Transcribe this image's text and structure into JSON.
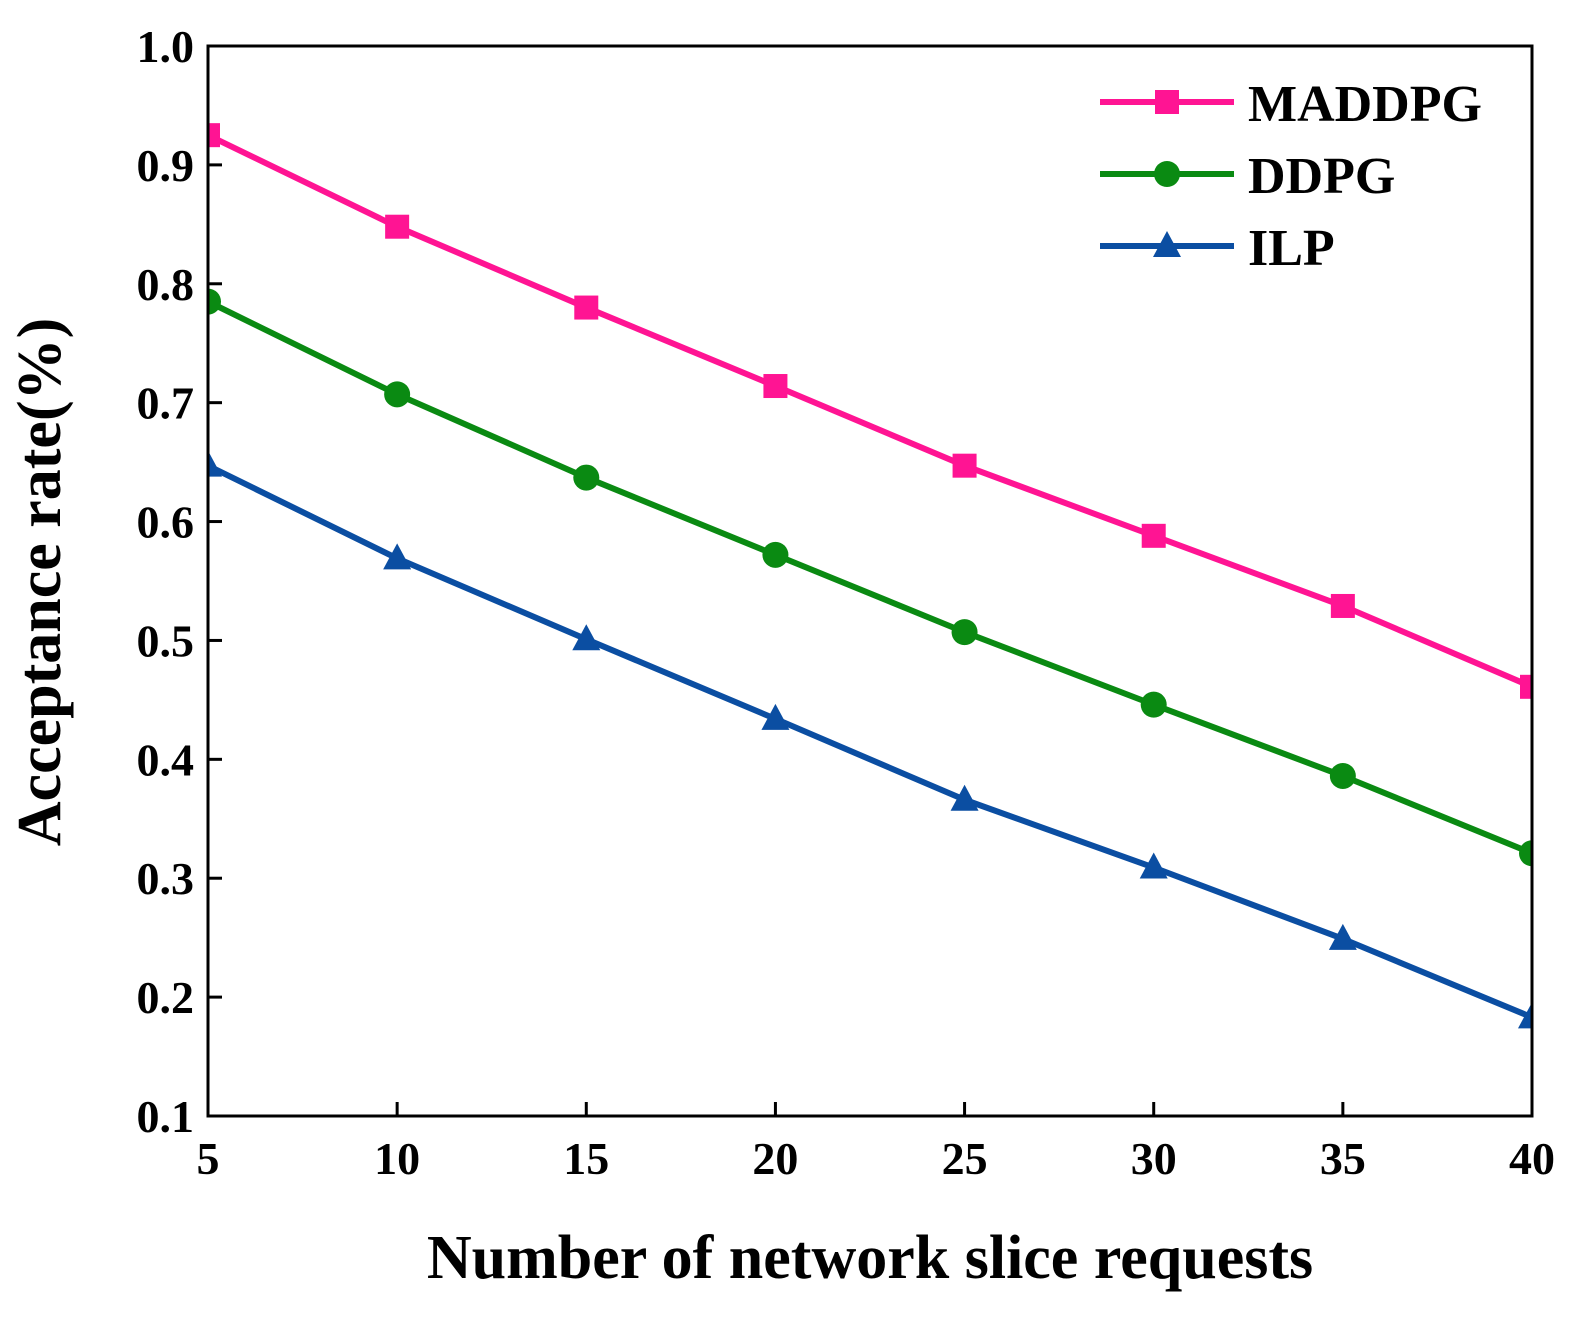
{
  "chart_data": {
    "type": "line",
    "title": "",
    "xlabel": "Number of network slice requests",
    "ylabel": "Acceptance rate(%)",
    "x": [
      5,
      10,
      15,
      20,
      25,
      30,
      35,
      40
    ],
    "xlim": [
      5,
      40
    ],
    "ylim": [
      0.1,
      1.0
    ],
    "xticks": [
      "5",
      "10",
      "15",
      "20",
      "25",
      "30",
      "35",
      "40"
    ],
    "yticks": [
      "0.1",
      "0.2",
      "0.3",
      "0.4",
      "0.5",
      "0.6",
      "0.7",
      "0.8",
      "0.9",
      "1.0"
    ],
    "grid": false,
    "legend_position": "top-right",
    "series": [
      {
        "name": "MADDPG",
        "color": "#ff1493",
        "marker": "square",
        "values": [
          0.925,
          0.848,
          0.78,
          0.714,
          0.647,
          0.588,
          0.529,
          0.461
        ]
      },
      {
        "name": "DDPG",
        "color": "#0a8a12",
        "marker": "circle",
        "values": [
          0.785,
          0.707,
          0.637,
          0.572,
          0.507,
          0.446,
          0.386,
          0.321
        ]
      },
      {
        "name": "ILP",
        "color": "#0b4ea2",
        "marker": "triangle",
        "values": [
          0.647,
          0.569,
          0.501,
          0.434,
          0.366,
          0.309,
          0.249,
          0.183
        ]
      }
    ]
  }
}
